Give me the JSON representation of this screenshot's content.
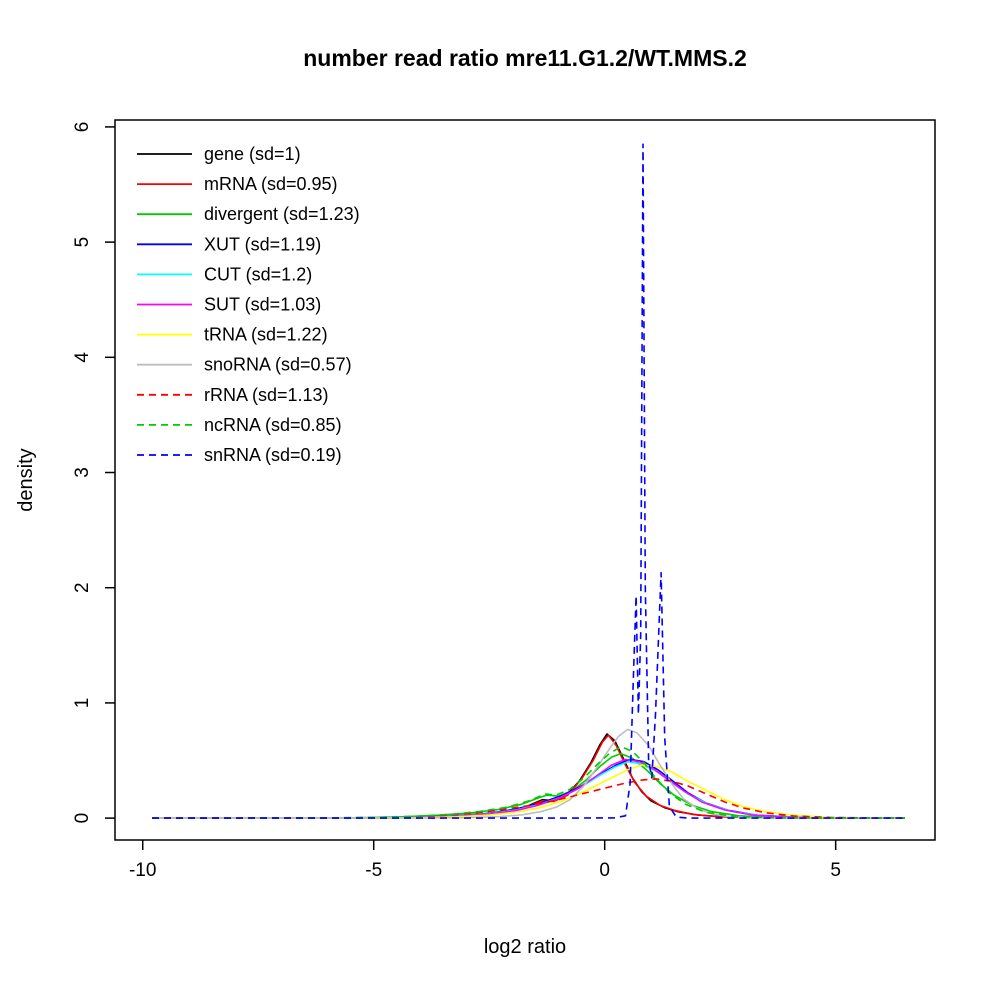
{
  "chart_data": {
    "type": "line",
    "title": "number read ratio mre11.G1.2/WT.MMS.2",
    "xlabel": "log2 ratio",
    "ylabel": "density",
    "xlim": [
      -10.6,
      7.15
    ],
    "ylim": [
      -0.19,
      6.06
    ],
    "xticks": [
      -10,
      -5,
      0,
      5
    ],
    "yticks": [
      0,
      1,
      2,
      3,
      4,
      5,
      6
    ],
    "grid": false,
    "legend_position": "top-left",
    "series": [
      {
        "name": "gene",
        "label": "gene (sd=1)",
        "color": "#000000",
        "dash": "solid",
        "points": [
          [
            -9.8,
            0
          ],
          [
            -6,
            0
          ],
          [
            -4.5,
            0.003
          ],
          [
            -3.5,
            0.012
          ],
          [
            -2.8,
            0.028
          ],
          [
            -2.2,
            0.055
          ],
          [
            -1.7,
            0.1
          ],
          [
            -1.35,
            0.16
          ],
          [
            -1.1,
            0.15
          ],
          [
            -0.85,
            0.19
          ],
          [
            -0.55,
            0.32
          ],
          [
            -0.3,
            0.48
          ],
          [
            -0.1,
            0.64
          ],
          [
            0.05,
            0.73
          ],
          [
            0.22,
            0.67
          ],
          [
            0.4,
            0.52
          ],
          [
            0.6,
            0.35
          ],
          [
            0.8,
            0.23
          ],
          [
            1.0,
            0.15
          ],
          [
            1.3,
            0.09
          ],
          [
            1.6,
            0.055
          ],
          [
            2.0,
            0.028
          ],
          [
            2.5,
            0.012
          ],
          [
            3.2,
            0.004
          ],
          [
            4.5,
            0.001
          ],
          [
            6.5,
            0
          ]
        ]
      },
      {
        "name": "mRNA",
        "label": "mRNA (sd=0.95)",
        "color": "#FF0000",
        "dash": "solid",
        "points": [
          [
            -9.8,
            0
          ],
          [
            -6,
            0
          ],
          [
            -4.5,
            0.003
          ],
          [
            -3.5,
            0.011
          ],
          [
            -2.8,
            0.026
          ],
          [
            -2.2,
            0.05
          ],
          [
            -1.7,
            0.095
          ],
          [
            -1.35,
            0.15
          ],
          [
            -1.1,
            0.145
          ],
          [
            -0.8,
            0.2
          ],
          [
            -0.5,
            0.34
          ],
          [
            -0.25,
            0.5
          ],
          [
            -0.05,
            0.66
          ],
          [
            0.08,
            0.72
          ],
          [
            0.25,
            0.63
          ],
          [
            0.45,
            0.46
          ],
          [
            0.65,
            0.31
          ],
          [
            0.9,
            0.19
          ],
          [
            1.2,
            0.11
          ],
          [
            1.5,
            0.068
          ],
          [
            1.9,
            0.033
          ],
          [
            2.4,
            0.014
          ],
          [
            3.1,
            0.005
          ],
          [
            4.5,
            0.001
          ],
          [
            6.5,
            0
          ]
        ]
      },
      {
        "name": "divergent",
        "label": "divergent (sd=1.23)",
        "color": "#00CD00",
        "dash": "solid",
        "points": [
          [
            -9.8,
            0
          ],
          [
            -5.5,
            0.003
          ],
          [
            -4.5,
            0.01
          ],
          [
            -3.6,
            0.025
          ],
          [
            -2.9,
            0.045
          ],
          [
            -2.3,
            0.075
          ],
          [
            -1.8,
            0.12
          ],
          [
            -1.4,
            0.18
          ],
          [
            -1.25,
            0.2
          ],
          [
            -1.0,
            0.19
          ],
          [
            -0.7,
            0.24
          ],
          [
            -0.4,
            0.33
          ],
          [
            -0.1,
            0.45
          ],
          [
            0.15,
            0.53
          ],
          [
            0.35,
            0.56
          ],
          [
            0.6,
            0.52
          ],
          [
            0.9,
            0.42
          ],
          [
            1.2,
            0.3
          ],
          [
            1.5,
            0.2
          ],
          [
            1.9,
            0.11
          ],
          [
            2.3,
            0.058
          ],
          [
            2.9,
            0.02
          ],
          [
            3.6,
            0.006
          ],
          [
            5,
            0.001
          ],
          [
            6.5,
            0
          ]
        ]
      },
      {
        "name": "XUT",
        "label": "XUT (sd=1.19)",
        "color": "#0000FF",
        "dash": "solid",
        "points": [
          [
            -9.8,
            0
          ],
          [
            -5,
            0.002
          ],
          [
            -4,
            0.008
          ],
          [
            -3.2,
            0.02
          ],
          [
            -2.5,
            0.042
          ],
          [
            -1.9,
            0.08
          ],
          [
            -1.4,
            0.13
          ],
          [
            -0.9,
            0.2
          ],
          [
            -0.5,
            0.28
          ],
          [
            -0.1,
            0.38
          ],
          [
            0.25,
            0.46
          ],
          [
            0.55,
            0.51
          ],
          [
            0.85,
            0.49
          ],
          [
            1.15,
            0.42
          ],
          [
            1.45,
            0.33
          ],
          [
            1.8,
            0.22
          ],
          [
            2.2,
            0.13
          ],
          [
            2.7,
            0.065
          ],
          [
            3.3,
            0.025
          ],
          [
            4.2,
            0.007
          ],
          [
            5.5,
            0.001
          ],
          [
            6.5,
            0
          ]
        ]
      },
      {
        "name": "CUT",
        "label": "CUT (sd=1.2)",
        "color": "#00FFFF",
        "dash": "solid",
        "points": [
          [
            -9.8,
            0
          ],
          [
            -5,
            0.002
          ],
          [
            -4,
            0.007
          ],
          [
            -3.2,
            0.018
          ],
          [
            -2.5,
            0.038
          ],
          [
            -1.9,
            0.072
          ],
          [
            -1.4,
            0.12
          ],
          [
            -0.95,
            0.18
          ],
          [
            -0.55,
            0.26
          ],
          [
            -0.15,
            0.36
          ],
          [
            0.2,
            0.44
          ],
          [
            0.5,
            0.49
          ],
          [
            0.8,
            0.47
          ],
          [
            1.1,
            0.41
          ],
          [
            1.45,
            0.31
          ],
          [
            1.8,
            0.21
          ],
          [
            2.25,
            0.12
          ],
          [
            2.75,
            0.058
          ],
          [
            3.4,
            0.02
          ],
          [
            4.3,
            0.005
          ],
          [
            6.5,
            0
          ]
        ]
      },
      {
        "name": "SUT",
        "label": "SUT (sd=1.03)",
        "color": "#FF00FF",
        "dash": "solid",
        "points": [
          [
            -9.8,
            0
          ],
          [
            -5,
            0.002
          ],
          [
            -4,
            0.006
          ],
          [
            -3.2,
            0.016
          ],
          [
            -2.5,
            0.035
          ],
          [
            -1.9,
            0.068
          ],
          [
            -1.45,
            0.11
          ],
          [
            -1.0,
            0.17
          ],
          [
            -0.6,
            0.25
          ],
          [
            -0.2,
            0.36
          ],
          [
            0.15,
            0.46
          ],
          [
            0.45,
            0.51
          ],
          [
            0.75,
            0.49
          ],
          [
            1.05,
            0.43
          ],
          [
            1.35,
            0.34
          ],
          [
            1.7,
            0.24
          ],
          [
            2.1,
            0.14
          ],
          [
            2.6,
            0.07
          ],
          [
            3.2,
            0.026
          ],
          [
            4,
            0.007
          ],
          [
            5.5,
            0.001
          ],
          [
            6.5,
            0
          ]
        ]
      },
      {
        "name": "tRNA",
        "label": "tRNA (sd=1.22)",
        "color": "#FFFF00",
        "dash": "solid",
        "points": [
          [
            -9.8,
            0
          ],
          [
            -5,
            0.001
          ],
          [
            -4,
            0.004
          ],
          [
            -3.2,
            0.011
          ],
          [
            -2.5,
            0.026
          ],
          [
            -1.9,
            0.052
          ],
          [
            -1.4,
            0.09
          ],
          [
            -0.9,
            0.15
          ],
          [
            -0.4,
            0.24
          ],
          [
            0.1,
            0.34
          ],
          [
            0.5,
            0.42
          ],
          [
            0.8,
            0.46
          ],
          [
            1.1,
            0.45
          ],
          [
            1.45,
            0.4
          ],
          [
            1.8,
            0.32
          ],
          [
            2.2,
            0.24
          ],
          [
            2.6,
            0.16
          ],
          [
            3.0,
            0.1
          ],
          [
            3.5,
            0.055
          ],
          [
            4.1,
            0.024
          ],
          [
            4.9,
            0.007
          ],
          [
            6,
            0.001
          ],
          [
            6.5,
            0
          ]
        ]
      },
      {
        "name": "snoRNA",
        "label": "snoRNA (sd=0.57)",
        "color": "#BEBEBE",
        "dash": "solid",
        "points": [
          [
            -9.8,
            0
          ],
          [
            -4,
            0.001
          ],
          [
            -3,
            0.004
          ],
          [
            -2.3,
            0.012
          ],
          [
            -1.8,
            0.028
          ],
          [
            -1.4,
            0.055
          ],
          [
            -1.05,
            0.095
          ],
          [
            -0.75,
            0.16
          ],
          [
            -0.45,
            0.28
          ],
          [
            -0.15,
            0.45
          ],
          [
            0.1,
            0.6
          ],
          [
            0.3,
            0.71
          ],
          [
            0.5,
            0.77
          ],
          [
            0.7,
            0.74
          ],
          [
            0.95,
            0.63
          ],
          [
            1.2,
            0.46
          ],
          [
            1.45,
            0.3
          ],
          [
            1.7,
            0.17
          ],
          [
            2.0,
            0.085
          ],
          [
            2.3,
            0.038
          ],
          [
            2.7,
            0.012
          ],
          [
            3.3,
            0.003
          ],
          [
            6.5,
            0
          ]
        ]
      },
      {
        "name": "rRNA",
        "label": "rRNA (sd=1.13)",
        "color": "#FF0000",
        "dash": "dashed",
        "points": [
          [
            -9.8,
            0
          ],
          [
            -5.5,
            0.002
          ],
          [
            -4.5,
            0.008
          ],
          [
            -3.6,
            0.02
          ],
          [
            -2.9,
            0.04
          ],
          [
            -2.3,
            0.068
          ],
          [
            -1.7,
            0.105
          ],
          [
            -1.1,
            0.15
          ],
          [
            -0.6,
            0.2
          ],
          [
            -0.1,
            0.25
          ],
          [
            0.4,
            0.3
          ],
          [
            0.8,
            0.33
          ],
          [
            1.1,
            0.34
          ],
          [
            1.45,
            0.32
          ],
          [
            1.8,
            0.28
          ],
          [
            2.2,
            0.21
          ],
          [
            2.6,
            0.14
          ],
          [
            3.0,
            0.088
          ],
          [
            3.5,
            0.045
          ],
          [
            4.1,
            0.018
          ],
          [
            4.9,
            0.005
          ],
          [
            6,
            0.001
          ],
          [
            6.5,
            0
          ]
        ]
      },
      {
        "name": "ncRNA",
        "label": "ncRNA (sd=0.85)",
        "color": "#00CD00",
        "dash": "dashed",
        "points": [
          [
            -9.8,
            0
          ],
          [
            -6,
            0.002
          ],
          [
            -5,
            0.007
          ],
          [
            -4.1,
            0.016
          ],
          [
            -3.3,
            0.033
          ],
          [
            -2.7,
            0.058
          ],
          [
            -2.1,
            0.096
          ],
          [
            -1.6,
            0.155
          ],
          [
            -1.3,
            0.21
          ],
          [
            -1.05,
            0.2
          ],
          [
            -0.75,
            0.25
          ],
          [
            -0.45,
            0.35
          ],
          [
            -0.15,
            0.47
          ],
          [
            0.1,
            0.56
          ],
          [
            0.35,
            0.62
          ],
          [
            0.6,
            0.58
          ],
          [
            0.85,
            0.48
          ],
          [
            1.1,
            0.35
          ],
          [
            1.4,
            0.22
          ],
          [
            1.75,
            0.12
          ],
          [
            2.2,
            0.05
          ],
          [
            2.8,
            0.015
          ],
          [
            3.6,
            0.003
          ],
          [
            6.5,
            0
          ]
        ]
      },
      {
        "name": "snRNA",
        "label": "snRNA (sd=0.19)",
        "color": "#0000FF",
        "dash": "dashed",
        "points": [
          [
            -9.8,
            0
          ],
          [
            -1,
            0
          ],
          [
            0.2,
            0.002
          ],
          [
            0.45,
            0.02
          ],
          [
            0.55,
            0.3
          ],
          [
            0.62,
            1.2
          ],
          [
            0.68,
            1.93
          ],
          [
            0.73,
            0.9
          ],
          [
            0.78,
            1.6
          ],
          [
            0.83,
            5.85
          ],
          [
            0.88,
            2.0
          ],
          [
            0.95,
            0.5
          ],
          [
            1.02,
            0.35
          ],
          [
            1.1,
            0.9
          ],
          [
            1.22,
            2.13
          ],
          [
            1.3,
            0.7
          ],
          [
            1.4,
            0.1
          ],
          [
            1.55,
            0.01
          ],
          [
            1.8,
            0
          ],
          [
            6.5,
            0
          ]
        ]
      }
    ]
  }
}
